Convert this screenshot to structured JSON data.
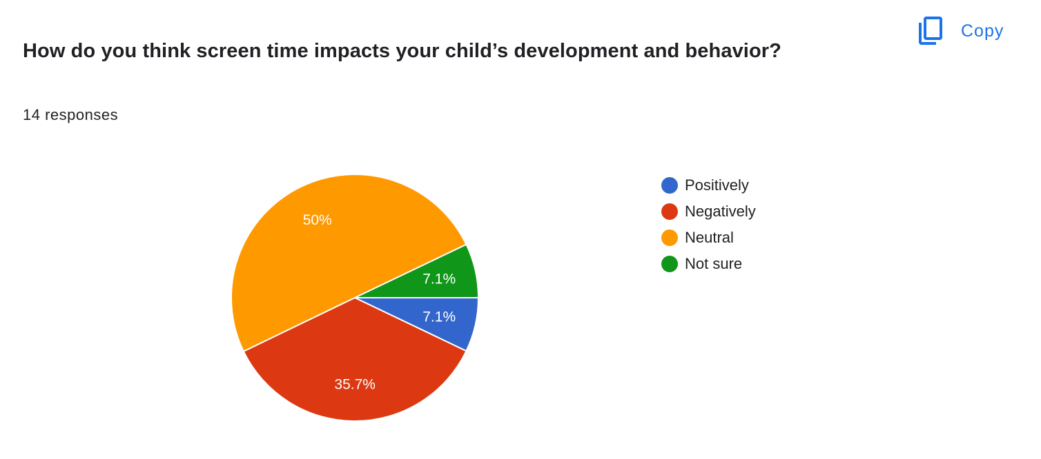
{
  "question": {
    "title": "How do you think screen time impacts your child’s development and behavior?",
    "responses": "14 responses"
  },
  "toolbar": {
    "copy_label": "Copy",
    "copy_icon": "copy-icon",
    "accent_color": "#1a73e8"
  },
  "chart_data": {
    "type": "pie",
    "title": "",
    "slices": [
      {
        "label": "Positively",
        "value": 7.1,
        "display": "7.1%",
        "color": "#3366cc"
      },
      {
        "label": "Negatively",
        "value": 35.7,
        "display": "35.7%",
        "color": "#dc3912"
      },
      {
        "label": "Neutral",
        "value": 50,
        "display": "50%",
        "color": "#ff9900"
      },
      {
        "label": "Not sure",
        "value": 7.1,
        "display": "7.1%",
        "color": "#109618"
      }
    ],
    "legend_position": "right"
  }
}
